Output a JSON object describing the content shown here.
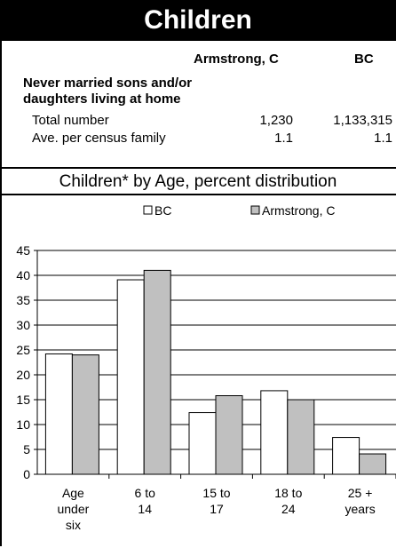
{
  "title": "Children",
  "table": {
    "col_headers": [
      "Armstrong, C",
      "BC"
    ],
    "section_title": "Never married sons and/or daughters living at home",
    "rows": [
      {
        "label": "Total number",
        "armstrong": "1,230",
        "bc": "1,133,315"
      },
      {
        "label": "Ave. per census family",
        "armstrong": "1.1",
        "bc": "1.1"
      }
    ]
  },
  "chart_title": "Children* by Age, percent distribution",
  "chart_data": {
    "type": "bar",
    "categories": [
      "Age under six",
      "6 to 14",
      "15 to 17",
      "18 to 24",
      "25 + years"
    ],
    "category_lines": [
      [
        "Age",
        "under",
        "six"
      ],
      [
        "6 to",
        "14"
      ],
      [
        "15 to",
        "17"
      ],
      [
        "18 to",
        "24"
      ],
      [
        "25 +",
        "years"
      ]
    ],
    "series": [
      {
        "name": "BC",
        "color": "#ffffff",
        "values": [
          24.2,
          39.1,
          12.4,
          16.8,
          7.4
        ]
      },
      {
        "name": "Armstrong, C",
        "color": "#c0c0c0",
        "values": [
          24.0,
          41.0,
          15.8,
          15.0,
          4.1
        ]
      }
    ],
    "ylim": [
      0,
      45
    ],
    "yticks": [
      0,
      5,
      10,
      15,
      20,
      25,
      30,
      35,
      40,
      45
    ],
    "grid": true,
    "legend_position": "top"
  }
}
